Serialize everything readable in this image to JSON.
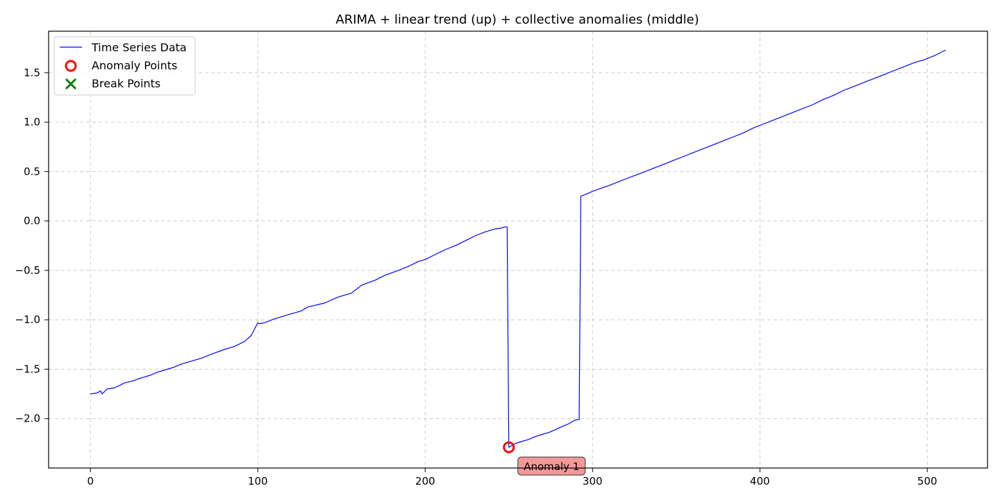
{
  "chart_data": {
    "type": "line",
    "title": "ARIMA + linear trend (up) + collective anomalies (middle)",
    "xlabel": "",
    "ylabel": "",
    "xlim": [
      -25,
      536
    ],
    "ylim": [
      -2.5,
      1.92
    ],
    "x_ticks": [
      0,
      100,
      200,
      300,
      400,
      500
    ],
    "x_tick_labels": [
      "0",
      "100",
      "200",
      "300",
      "400",
      "500"
    ],
    "y_ticks": [
      -2.0,
      -1.5,
      -1.0,
      -0.5,
      0.0,
      0.5,
      1.0,
      1.5
    ],
    "y_tick_labels": [
      "−2.0",
      "−1.5",
      "−1.0",
      "−0.5",
      "0.0",
      "0.5",
      "1.0",
      "1.5"
    ],
    "grid": true,
    "legend_position": "top-left",
    "series": [
      {
        "name": "Time Series Data",
        "color": "#0000ff",
        "points": [
          [
            0,
            -1.75
          ],
          [
            4,
            -1.74
          ],
          [
            6,
            -1.72
          ],
          [
            7,
            -1.75
          ],
          [
            10,
            -1.7
          ],
          [
            14,
            -1.69
          ],
          [
            18,
            -1.66
          ],
          [
            20,
            -1.64
          ],
          [
            25,
            -1.62
          ],
          [
            30,
            -1.59
          ],
          [
            36,
            -1.56
          ],
          [
            40,
            -1.53
          ],
          [
            46,
            -1.5
          ],
          [
            50,
            -1.48
          ],
          [
            54,
            -1.45
          ],
          [
            60,
            -1.42
          ],
          [
            66,
            -1.39
          ],
          [
            72,
            -1.35
          ],
          [
            80,
            -1.3
          ],
          [
            86,
            -1.27
          ],
          [
            92,
            -1.22
          ],
          [
            96,
            -1.16
          ],
          [
            100,
            -1.03
          ],
          [
            101,
            -1.04
          ],
          [
            104,
            -1.03
          ],
          [
            110,
            -0.99
          ],
          [
            120,
            -0.94
          ],
          [
            126,
            -0.91
          ],
          [
            130,
            -0.87
          ],
          [
            140,
            -0.83
          ],
          [
            148,
            -0.77
          ],
          [
            156,
            -0.73
          ],
          [
            162,
            -0.65
          ],
          [
            170,
            -0.6
          ],
          [
            176,
            -0.55
          ],
          [
            184,
            -0.5
          ],
          [
            190,
            -0.46
          ],
          [
            196,
            -0.41
          ],
          [
            200,
            -0.39
          ],
          [
            206,
            -0.34
          ],
          [
            212,
            -0.29
          ],
          [
            218,
            -0.25
          ],
          [
            224,
            -0.2
          ],
          [
            230,
            -0.15
          ],
          [
            236,
            -0.11
          ],
          [
            242,
            -0.08
          ],
          [
            246,
            -0.07
          ],
          [
            248,
            -0.06
          ],
          [
            249,
            -0.06
          ],
          [
            250,
            -2.29
          ],
          [
            254,
            -2.25
          ],
          [
            258,
            -2.23
          ],
          [
            262,
            -2.21
          ],
          [
            266,
            -2.18
          ],
          [
            270,
            -2.16
          ],
          [
            274,
            -2.14
          ],
          [
            278,
            -2.11
          ],
          [
            282,
            -2.08
          ],
          [
            286,
            -2.05
          ],
          [
            289,
            -2.02
          ],
          [
            291,
            -2.01
          ],
          [
            292,
            -2.01
          ],
          [
            293,
            0.25
          ],
          [
            296,
            0.27
          ],
          [
            300,
            0.3
          ],
          [
            305,
            0.33
          ],
          [
            310,
            0.36
          ],
          [
            316,
            0.4
          ],
          [
            322,
            0.44
          ],
          [
            330,
            0.49
          ],
          [
            336,
            0.53
          ],
          [
            342,
            0.57
          ],
          [
            348,
            0.61
          ],
          [
            354,
            0.65
          ],
          [
            360,
            0.69
          ],
          [
            366,
            0.73
          ],
          [
            372,
            0.77
          ],
          [
            378,
            0.81
          ],
          [
            384,
            0.85
          ],
          [
            390,
            0.89
          ],
          [
            396,
            0.94
          ],
          [
            402,
            0.98
          ],
          [
            408,
            1.02
          ],
          [
            414,
            1.06
          ],
          [
            420,
            1.1
          ],
          [
            426,
            1.14
          ],
          [
            432,
            1.18
          ],
          [
            438,
            1.23
          ],
          [
            444,
            1.27
          ],
          [
            450,
            1.32
          ],
          [
            456,
            1.36
          ],
          [
            462,
            1.4
          ],
          [
            468,
            1.44
          ],
          [
            474,
            1.48
          ],
          [
            480,
            1.52
          ],
          [
            486,
            1.56
          ],
          [
            492,
            1.6
          ],
          [
            498,
            1.63
          ],
          [
            504,
            1.67
          ],
          [
            511,
            1.73
          ]
        ]
      }
    ],
    "anomaly_points": [
      {
        "x": 250,
        "y": -2.29,
        "label": "Anomaly 1"
      }
    ],
    "legend": [
      {
        "label": "Time Series Data",
        "marker": "line",
        "color": "#0000ff"
      },
      {
        "label": "Anomaly Points",
        "marker": "circle",
        "color": "#ff0000"
      },
      {
        "label": "Break Points",
        "marker": "x",
        "color": "#008000"
      }
    ]
  }
}
